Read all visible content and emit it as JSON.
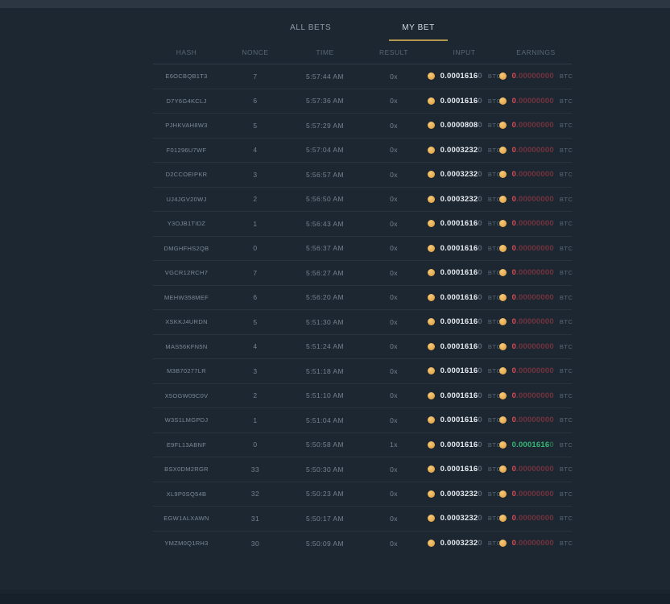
{
  "tabs": {
    "all_bets": "ALL BETS",
    "my_bet": "MY BET",
    "active_tab": "MY BET"
  },
  "columns": {
    "hash": "HASH",
    "nonce": "NONCE",
    "time": "TIME",
    "result": "RESULT",
    "input": "INPUT",
    "earnings": "EARNINGS"
  },
  "currency": "BTC",
  "colors": {
    "bg": "#1d2732",
    "topbar-bg": "#2b3642",
    "gold-accent": "#b2974d",
    "coin-gold": "#dd9b38",
    "loss-red": "#da4b55",
    "loss-red-dim": "#73333d",
    "win-green": "#35b877",
    "win-green-dim": "#2b6b4c"
  },
  "rows": [
    {
      "hash": "E6OCBQB1T3",
      "nonce": "7",
      "time": "5:57:44 AM",
      "result": "0x",
      "input_main": "0.0001616",
      "input_dim": "0",
      "earn_main": "0",
      "earn_dim": ".00000000",
      "win": false
    },
    {
      "hash": "D7Y6G4KCLJ",
      "nonce": "6",
      "time": "5:57:36 AM",
      "result": "0x",
      "input_main": "0.0001616",
      "input_dim": "0",
      "earn_main": "0",
      "earn_dim": ".00000000",
      "win": false
    },
    {
      "hash": "PJHKVAH8W3",
      "nonce": "5",
      "time": "5:57:29 AM",
      "result": "0x",
      "input_main": "0.0000808",
      "input_dim": "0",
      "earn_main": "0",
      "earn_dim": ".00000000",
      "win": false
    },
    {
      "hash": "F01296U7WF",
      "nonce": "4",
      "time": "5:57:04 AM",
      "result": "0x",
      "input_main": "0.0003232",
      "input_dim": "0",
      "earn_main": "0",
      "earn_dim": ".00000000",
      "win": false
    },
    {
      "hash": "D2CCOEIPKR",
      "nonce": "3",
      "time": "5:56:57 AM",
      "result": "0x",
      "input_main": "0.0003232",
      "input_dim": "0",
      "earn_main": "0",
      "earn_dim": ".00000000",
      "win": false
    },
    {
      "hash": "UJ4JGV20WJ",
      "nonce": "2",
      "time": "5:56:50 AM",
      "result": "0x",
      "input_main": "0.0003232",
      "input_dim": "0",
      "earn_main": "0",
      "earn_dim": ".00000000",
      "win": false
    },
    {
      "hash": "Y3OJB1TIDZ",
      "nonce": "1",
      "time": "5:56:43 AM",
      "result": "0x",
      "input_main": "0.0001616",
      "input_dim": "0",
      "earn_main": "0",
      "earn_dim": ".00000000",
      "win": false
    },
    {
      "hash": "DMGHFHS2QB",
      "nonce": "0",
      "time": "5:56:37 AM",
      "result": "0x",
      "input_main": "0.0001616",
      "input_dim": "0",
      "earn_main": "0",
      "earn_dim": ".00000000",
      "win": false
    },
    {
      "hash": "VGCR12RCH7",
      "nonce": "7",
      "time": "5:56:27 AM",
      "result": "0x",
      "input_main": "0.0001616",
      "input_dim": "0",
      "earn_main": "0",
      "earn_dim": ".00000000",
      "win": false
    },
    {
      "hash": "MEHW358MEF",
      "nonce": "6",
      "time": "5:56:20 AM",
      "result": "0x",
      "input_main": "0.0001616",
      "input_dim": "0",
      "earn_main": "0",
      "earn_dim": ".00000000",
      "win": false
    },
    {
      "hash": "XSKKJ4URDN",
      "nonce": "5",
      "time": "5:51:30 AM",
      "result": "0x",
      "input_main": "0.0001616",
      "input_dim": "0",
      "earn_main": "0",
      "earn_dim": ".00000000",
      "win": false
    },
    {
      "hash": "MAS56KFN5N",
      "nonce": "4",
      "time": "5:51:24 AM",
      "result": "0x",
      "input_main": "0.0001616",
      "input_dim": "0",
      "earn_main": "0",
      "earn_dim": ".00000000",
      "win": false
    },
    {
      "hash": "M3B70277LR",
      "nonce": "3",
      "time": "5:51:18 AM",
      "result": "0x",
      "input_main": "0.0001616",
      "input_dim": "0",
      "earn_main": "0",
      "earn_dim": ".00000000",
      "win": false
    },
    {
      "hash": "X5OGW09C0V",
      "nonce": "2",
      "time": "5:51:10 AM",
      "result": "0x",
      "input_main": "0.0001616",
      "input_dim": "0",
      "earn_main": "0",
      "earn_dim": ".00000000",
      "win": false
    },
    {
      "hash": "W3S1LMGPDJ",
      "nonce": "1",
      "time": "5:51:04 AM",
      "result": "0x",
      "input_main": "0.0001616",
      "input_dim": "0",
      "earn_main": "0",
      "earn_dim": ".00000000",
      "win": false
    },
    {
      "hash": "E9FL13ABNF",
      "nonce": "0",
      "time": "5:50:58 AM",
      "result": "1x",
      "input_main": "0.0001616",
      "input_dim": "0",
      "earn_main": "0.0001616",
      "earn_dim": "0",
      "win": true
    },
    {
      "hash": "BSX0DM2RGR",
      "nonce": "33",
      "time": "5:50:30 AM",
      "result": "0x",
      "input_main": "0.0001616",
      "input_dim": "0",
      "earn_main": "0",
      "earn_dim": ".00000000",
      "win": false
    },
    {
      "hash": "XL9P0SQ54B",
      "nonce": "32",
      "time": "5:50:23 AM",
      "result": "0x",
      "input_main": "0.0003232",
      "input_dim": "0",
      "earn_main": "0",
      "earn_dim": ".00000000",
      "win": false
    },
    {
      "hash": "EGW1ALXAWN",
      "nonce": "31",
      "time": "5:50:17 AM",
      "result": "0x",
      "input_main": "0.0003232",
      "input_dim": "0",
      "earn_main": "0",
      "earn_dim": ".00000000",
      "win": false
    },
    {
      "hash": "YMZM0Q1RH3",
      "nonce": "30",
      "time": "5:50:09 AM",
      "result": "0x",
      "input_main": "0.0003232",
      "input_dim": "0",
      "earn_main": "0",
      "earn_dim": ".00000000",
      "win": false
    }
  ]
}
